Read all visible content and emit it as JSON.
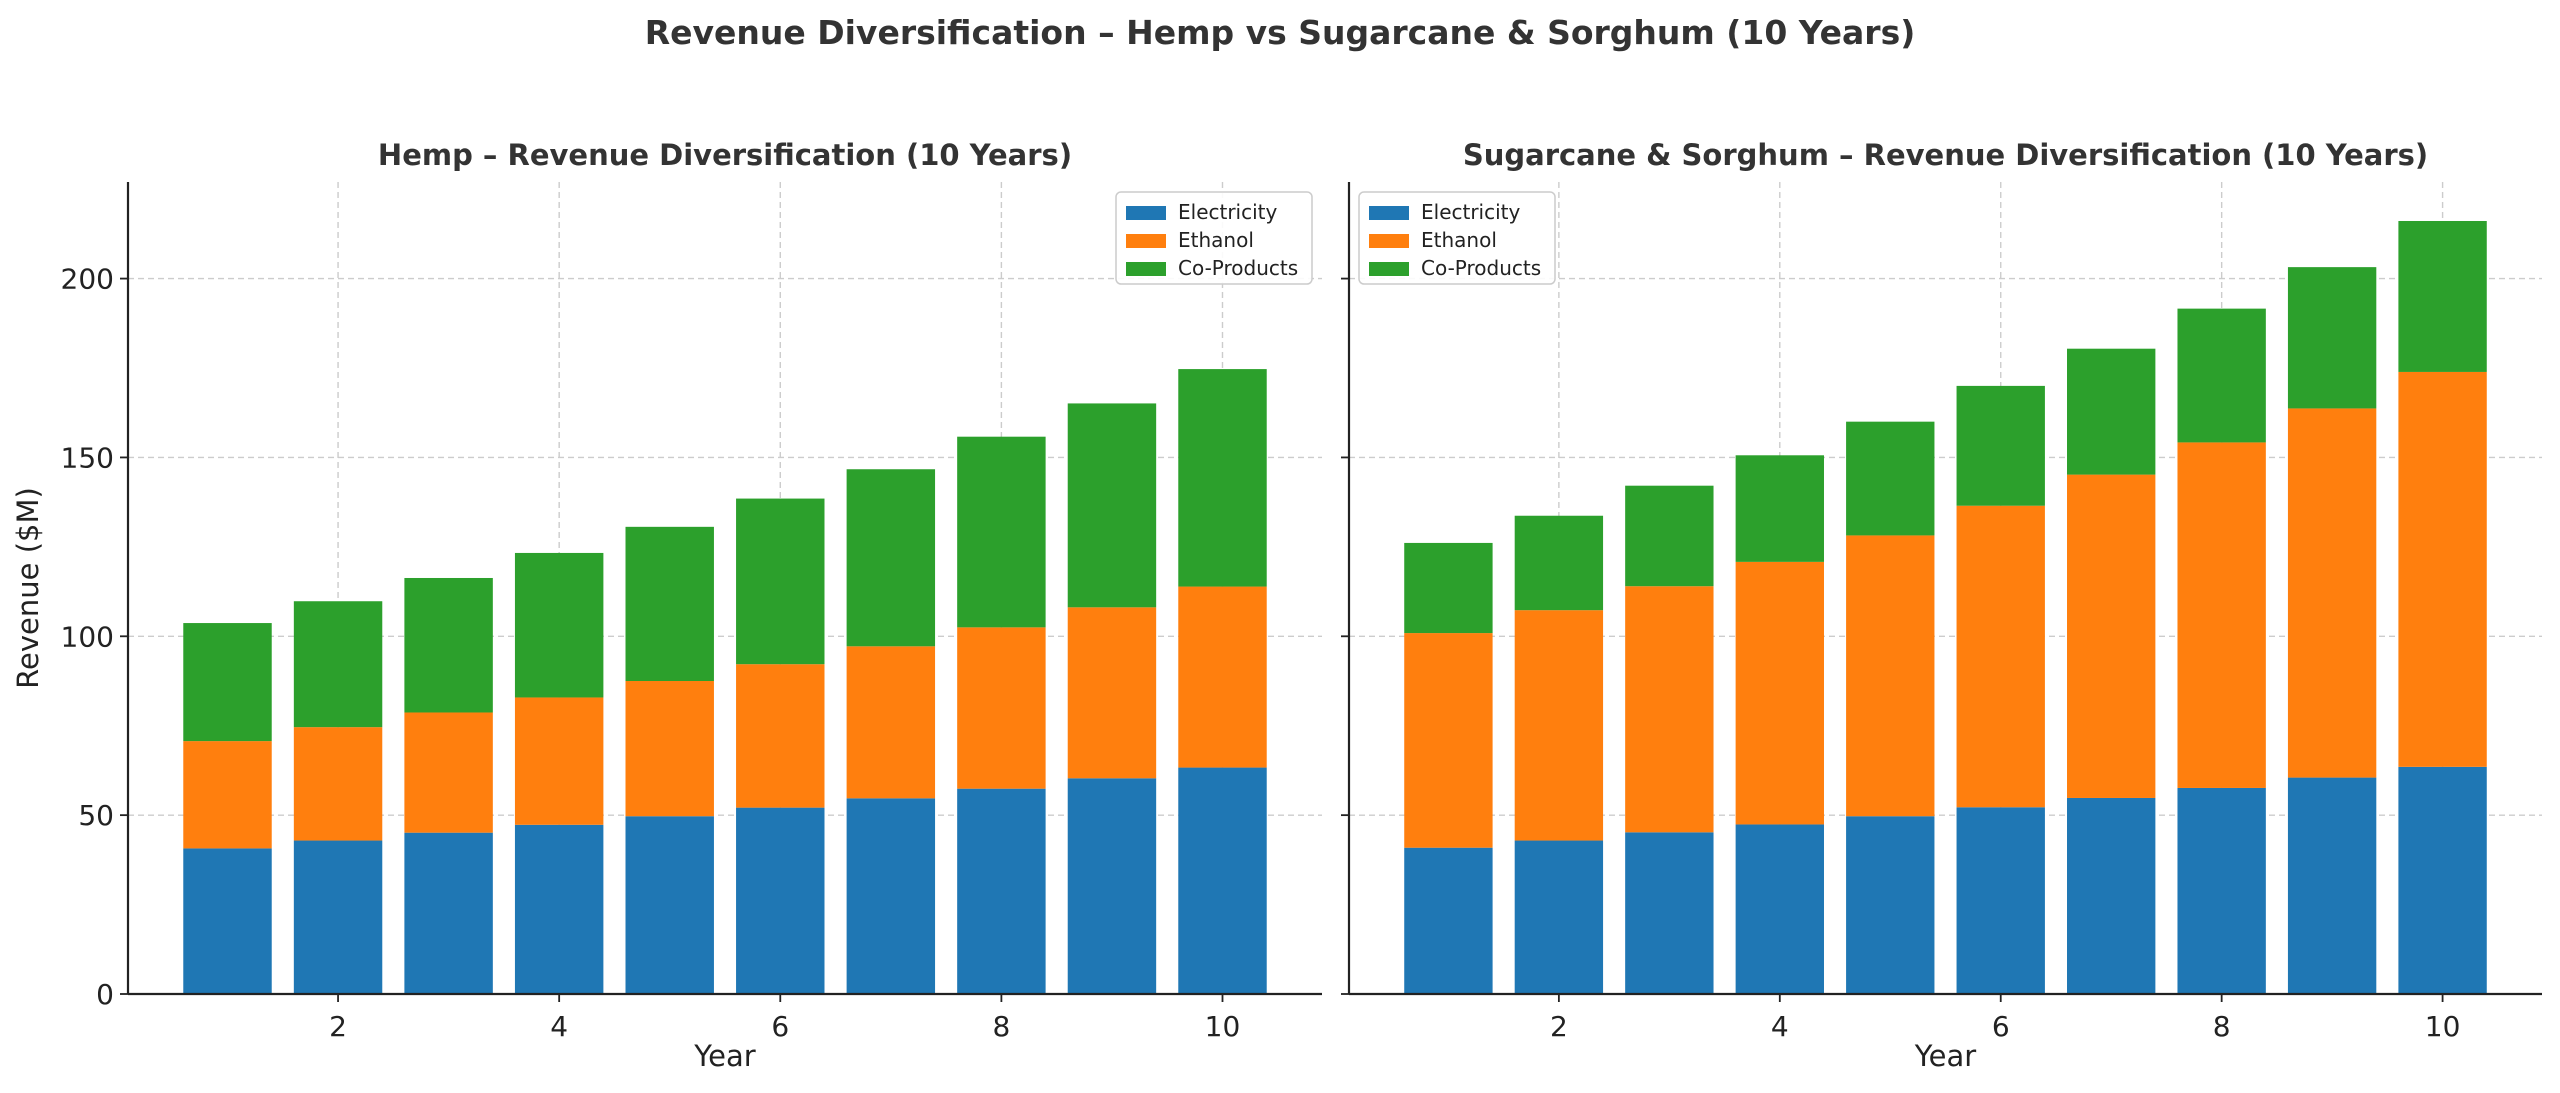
{
  "title": "Revenue Diversification – Hemp vs Sugarcane & Sorghum (10 Years)",
  "colors": {
    "Electricity": "#1f77b4",
    "Ethanol": "#ff7f0e",
    "Co-Products": "#2ca02c"
  },
  "chart_data": [
    {
      "type": "bar",
      "stacked": true,
      "title": "Hemp – Revenue Diversification (10 Years)",
      "xlabel": "Year",
      "ylabel": "Revenue ($M)",
      "x": [
        1,
        2,
        3,
        4,
        5,
        6,
        7,
        8,
        9,
        10
      ],
      "xticks": [
        2,
        4,
        6,
        8,
        10
      ],
      "yticks": [
        0,
        50,
        100,
        150,
        200
      ],
      "ylim": [
        0,
        227
      ],
      "xlim": [
        0.1,
        10.9
      ],
      "grid": true,
      "legend_position": "top-right",
      "series": [
        {
          "name": "Electricity",
          "values": [
            40.7,
            42.9,
            45.1,
            47.3,
            49.7,
            52.1,
            54.7,
            57.4,
            60.3,
            63.3
          ]
        },
        {
          "name": "Ethanol",
          "values": [
            30.0,
            31.7,
            33.6,
            35.6,
            37.8,
            40.1,
            42.5,
            45.1,
            47.8,
            50.6
          ]
        },
        {
          "name": "Co-Products",
          "values": [
            33.0,
            35.2,
            37.6,
            40.4,
            43.1,
            46.3,
            49.5,
            53.3,
            57.0,
            60.8
          ]
        }
      ]
    },
    {
      "type": "bar",
      "stacked": true,
      "title": "Sugarcane & Sorghum – Revenue Diversification (10 Years)",
      "xlabel": "Year",
      "ylabel": "",
      "x": [
        1,
        2,
        3,
        4,
        5,
        6,
        7,
        8,
        9,
        10
      ],
      "xticks": [
        2,
        4,
        6,
        8,
        10
      ],
      "yticks": [
        0,
        50,
        100,
        150,
        200
      ],
      "ylim": [
        0,
        227
      ],
      "xlim": [
        0.1,
        10.9
      ],
      "grid": true,
      "legend_position": "top-left",
      "series": [
        {
          "name": "Electricity",
          "values": [
            40.9,
            42.9,
            45.2,
            47.4,
            49.7,
            52.2,
            54.8,
            57.6,
            60.5,
            63.5
          ]
        },
        {
          "name": "Ethanol",
          "values": [
            60.0,
            64.4,
            68.8,
            73.4,
            78.5,
            84.3,
            90.4,
            96.6,
            103.2,
            110.4
          ]
        },
        {
          "name": "Co-Products",
          "values": [
            25.2,
            26.4,
            28.1,
            29.8,
            31.8,
            33.5,
            35.2,
            37.4,
            39.5,
            42.2
          ]
        }
      ]
    }
  ]
}
